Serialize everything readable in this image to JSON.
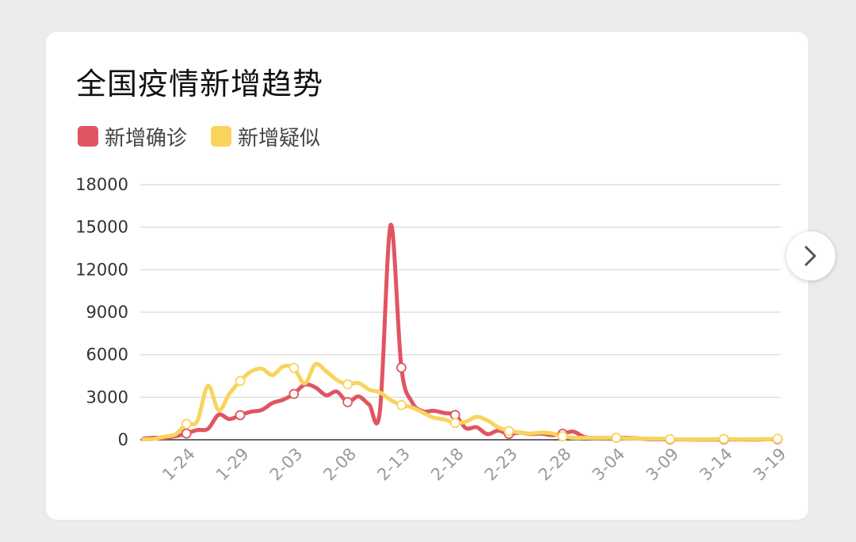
{
  "card": {
    "title": "全国疫情新增趋势"
  },
  "nav": {
    "next_icon": "chevron-right-icon"
  },
  "colors": {
    "confirmed": "#e05561",
    "suspected": "#f8d45c",
    "grid": "#d7d7d7",
    "axis": "#333333"
  },
  "chart_data": {
    "type": "line",
    "title": "全国疫情新增趋势",
    "legend_position": "top-left",
    "grid": true,
    "ylim": [
      0,
      18000
    ],
    "yticks": [
      "0",
      "3000",
      "6000",
      "9000",
      "12000",
      "15000",
      "18000"
    ],
    "x_tick_labels": [
      "1-24",
      "1-29",
      "2-03",
      "2-08",
      "2-13",
      "2-18",
      "2-23",
      "2-28",
      "3-04",
      "3-09",
      "3-14",
      "3-19"
    ],
    "x": [
      "1-20",
      "1-21",
      "1-22",
      "1-23",
      "1-24",
      "1-25",
      "1-26",
      "1-27",
      "1-28",
      "1-29",
      "1-30",
      "1-31",
      "2-01",
      "2-02",
      "2-03",
      "2-04",
      "2-05",
      "2-06",
      "2-07",
      "2-08",
      "2-09",
      "2-10",
      "2-11",
      "2-12",
      "2-13",
      "2-14",
      "2-15",
      "2-16",
      "2-17",
      "2-18",
      "2-19",
      "2-20",
      "2-21",
      "2-22",
      "2-23",
      "2-24",
      "2-25",
      "2-26",
      "2-27",
      "2-28",
      "2-29",
      "3-01",
      "3-02",
      "3-03",
      "3-04",
      "3-05",
      "3-06",
      "3-07",
      "3-08",
      "3-09",
      "3-10",
      "3-11",
      "3-12",
      "3-13",
      "3-14",
      "3-15",
      "3-16",
      "3-17",
      "3-18",
      "3-19"
    ],
    "series": [
      {
        "name": "新增确诊",
        "color": "#e05561",
        "values": [
          77,
          149,
          131,
          259,
          444,
          688,
          769,
          1771,
          1459,
          1737,
          1982,
          2102,
          2590,
          2829,
          3235,
          3887,
          3694,
          3143,
          3399,
          2656,
          3062,
          2478,
          2015,
          15152,
          5090,
          2641,
          2009,
          2048,
          1886,
          1749,
          820,
          889,
          397,
          648,
          409,
          508,
          406,
          433,
          327,
          427,
          573,
          202,
          125,
          119,
          139,
          143,
          99,
          44,
          40,
          19,
          24,
          15,
          8,
          11,
          20,
          16,
          21,
          13,
          34,
          39
        ]
      },
      {
        "name": "新增疑似",
        "color": "#f8d45c",
        "values": [
          27,
          65,
          227,
          389,
          1118,
          1309,
          3806,
          2077,
          3248,
          4148,
          4812,
          5019,
          4562,
          5173,
          5072,
          3971,
          5328,
          4833,
          4214,
          3916,
          4008,
          3536,
          3342,
          2807,
          2450,
          2277,
          1918,
          1563,
          1432,
          1185,
          1277,
          1614,
          1361,
          882,
          620,
          530,
          439,
          508,
          452,
          248,
          132,
          141,
          129,
          143,
          143,
          102,
          99,
          78,
          74,
          47,
          35,
          33,
          33,
          45,
          60,
          39,
          41,
          45,
          45,
          68
        ]
      }
    ],
    "marker_dates": [
      "1-24",
      "1-29",
      "2-03",
      "2-08",
      "2-13",
      "2-18",
      "2-23",
      "2-28",
      "3-04",
      "3-09",
      "3-14",
      "3-19"
    ]
  }
}
